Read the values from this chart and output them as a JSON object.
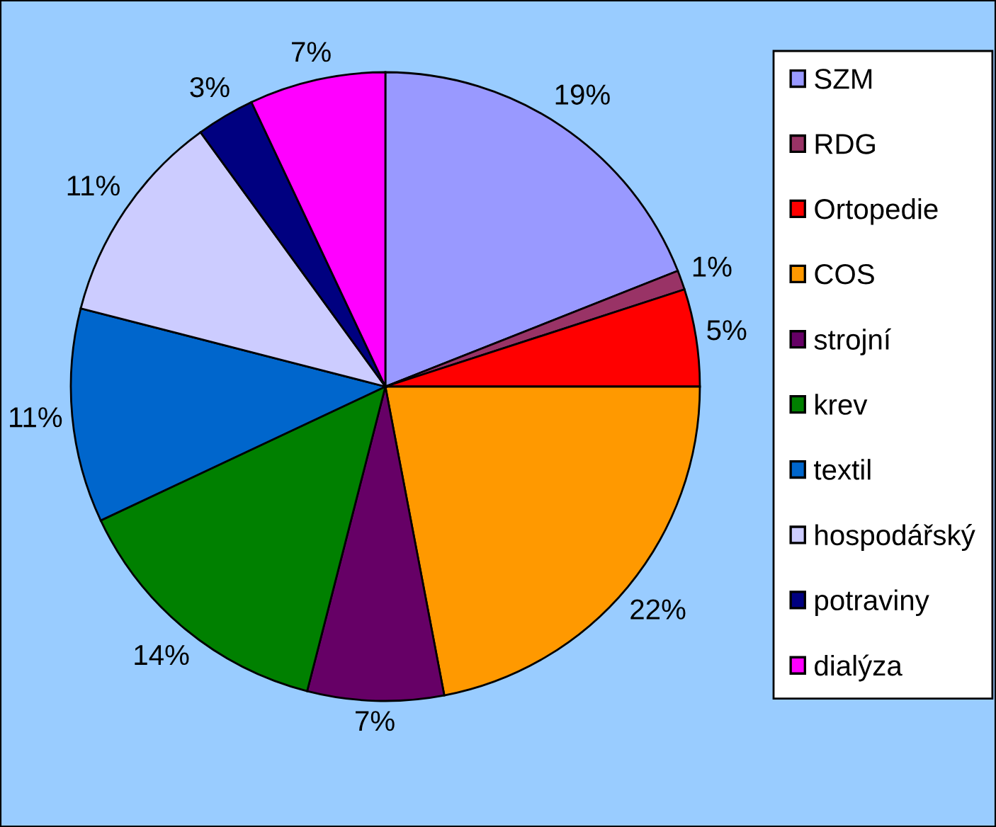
{
  "chart_data": {
    "type": "pie",
    "categories": [
      "SZM",
      "RDG",
      "Ortopedie",
      "COS",
      "strojní",
      "krev",
      "textil",
      "hospodářský",
      "potraviny",
      "dialýza"
    ],
    "values": [
      19,
      1,
      5,
      22,
      7,
      14,
      11,
      11,
      3,
      7
    ],
    "colors": [
      "#9999ff",
      "#993366",
      "#ff0000",
      "#ff9900",
      "#660066",
      "#008000",
      "#0066cc",
      "#ccccff",
      "#000080",
      "#ff00ff"
    ],
    "value_labels": [
      "19%",
      "1%",
      "5%",
      "22%",
      "7%",
      "14%",
      "11%",
      "11%",
      "3%",
      "7%"
    ],
    "legend": "right"
  }
}
